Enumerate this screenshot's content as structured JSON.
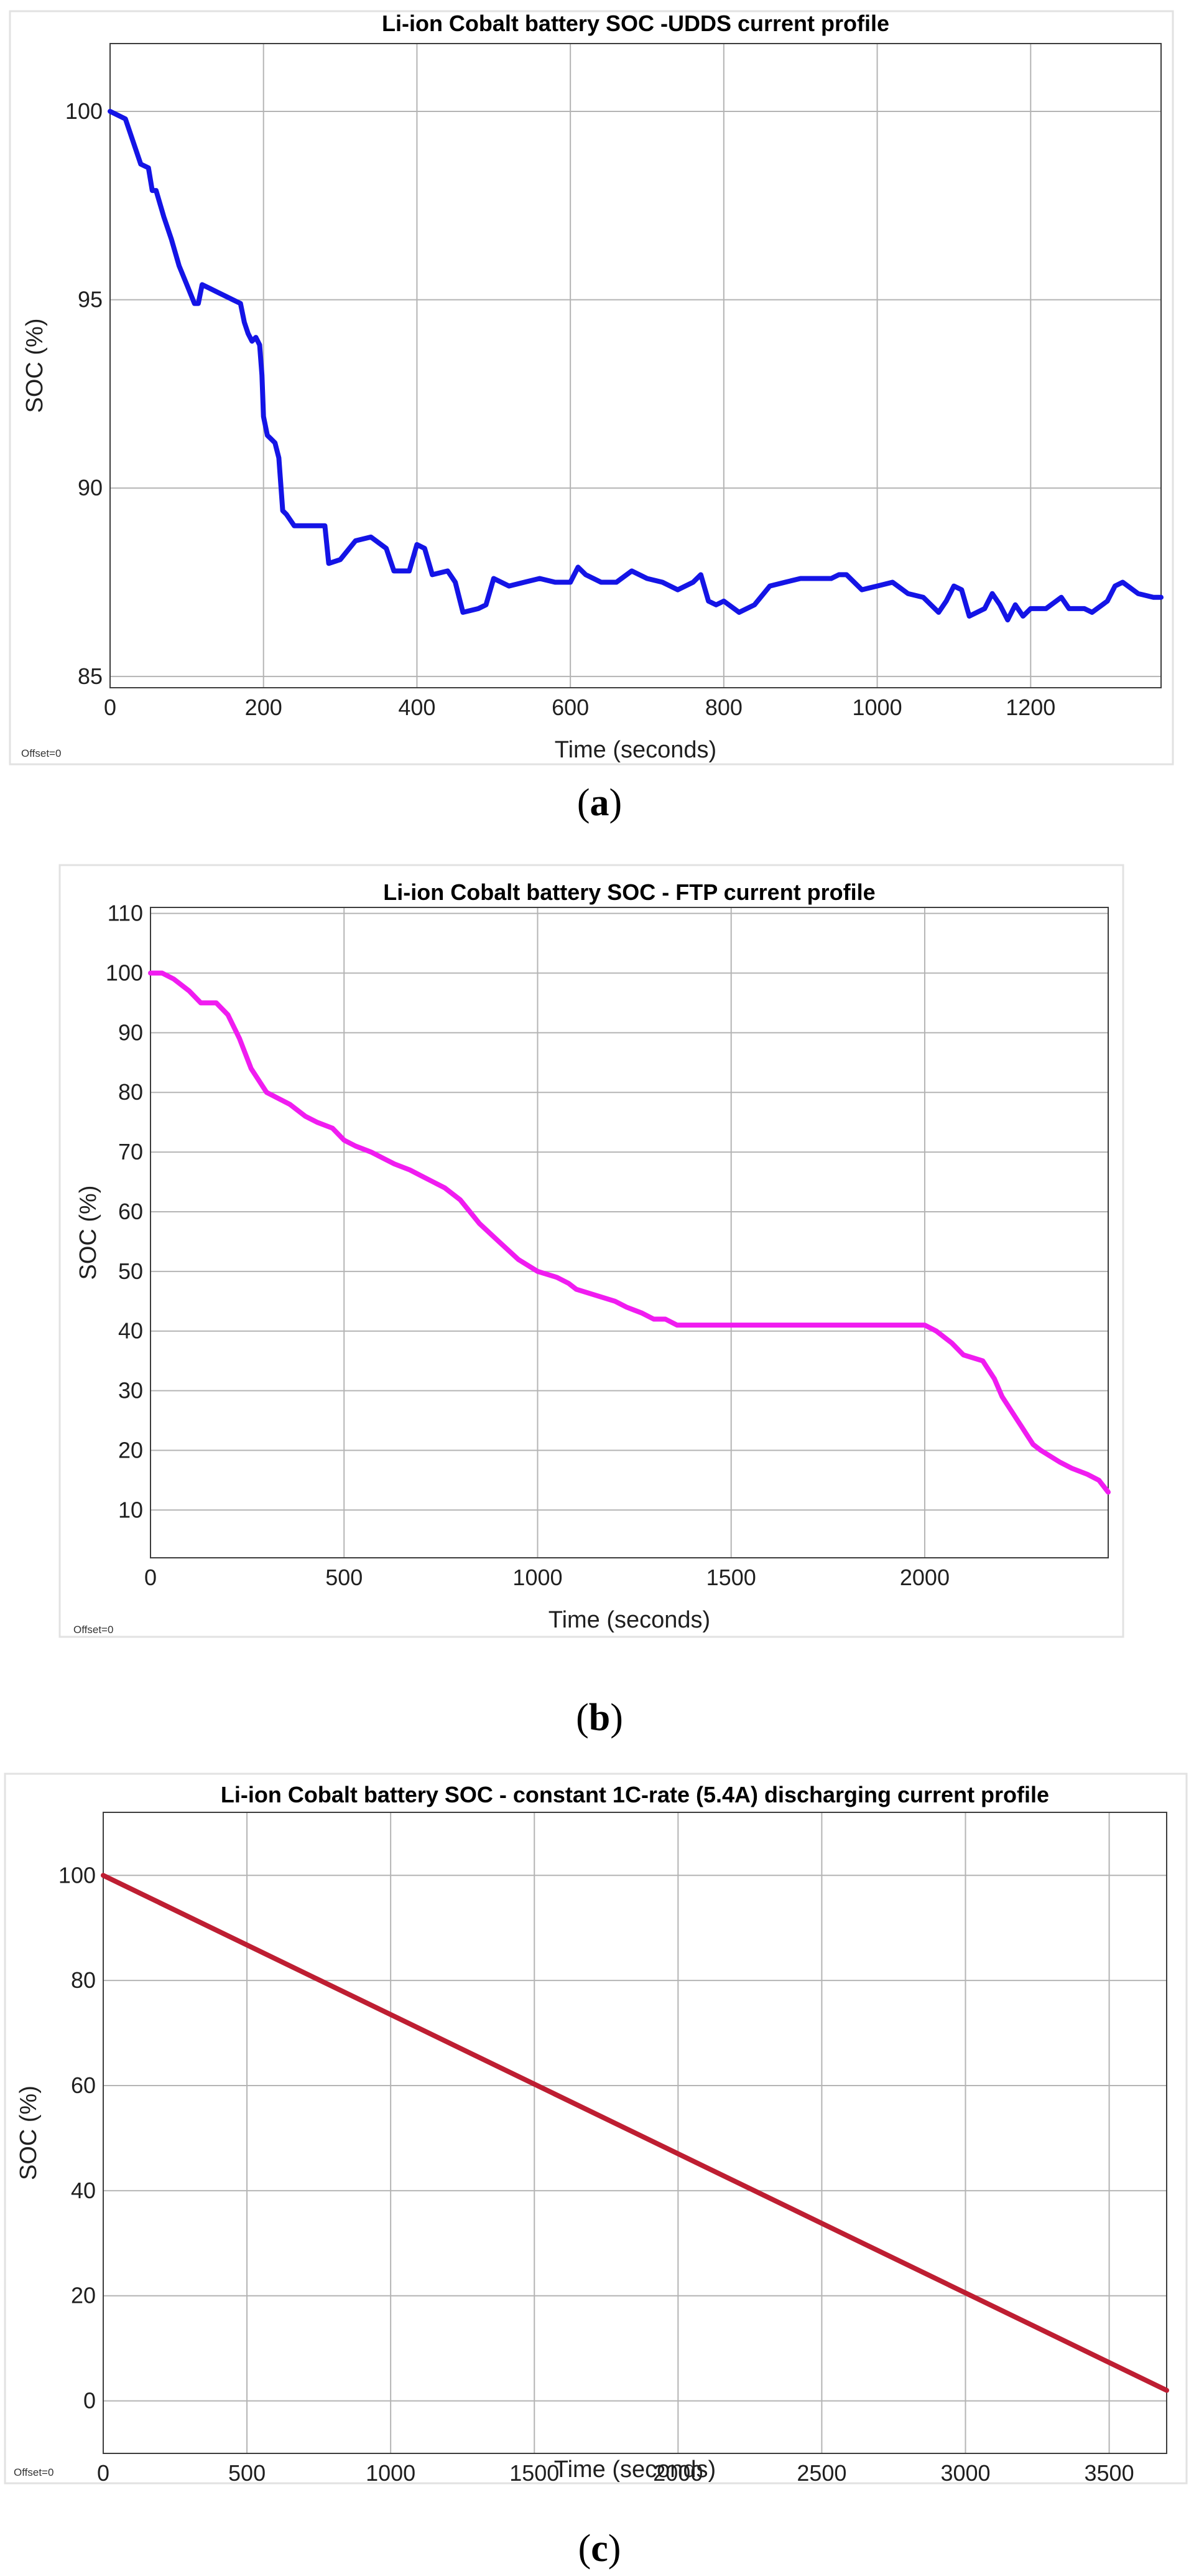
{
  "chart_data": [
    {
      "type": "line",
      "title": "Li-ion Cobalt battery SOC -UDDS current profile",
      "xlabel": "Time (seconds)",
      "ylabel": "SOC (%)",
      "offset_note": "Offset=0",
      "caption_open": "(",
      "caption_letter": "a",
      "caption_close": ")",
      "xlim": [
        0,
        1370
      ],
      "ylim": [
        84.7,
        101.8
      ],
      "xticks": [
        0,
        200,
        400,
        600,
        800,
        1000,
        1200
      ],
      "yticks": [
        85,
        90,
        95,
        100
      ],
      "grid": true,
      "line_color": "#1414e6",
      "series": [
        {
          "name": "SOC",
          "x": [
            0,
            20,
            30,
            40,
            50,
            55,
            60,
            70,
            80,
            90,
            100,
            110,
            115,
            120,
            130,
            140,
            150,
            160,
            170,
            175,
            180,
            185,
            190,
            195,
            198,
            200,
            205,
            210,
            215,
            220,
            225,
            230,
            240,
            260,
            280,
            285,
            300,
            320,
            340,
            360,
            370,
            390,
            400,
            410,
            420,
            440,
            450,
            460,
            480,
            490,
            500,
            520,
            540,
            560,
            580,
            600,
            610,
            620,
            640,
            660,
            680,
            700,
            720,
            730,
            740,
            760,
            770,
            780,
            790,
            800,
            820,
            840,
            860,
            880,
            900,
            920,
            940,
            950,
            960,
            980,
            1000,
            1020,
            1040,
            1060,
            1080,
            1090,
            1100,
            1110,
            1120,
            1140,
            1150,
            1160,
            1170,
            1180,
            1190,
            1200,
            1220,
            1240,
            1250,
            1260,
            1270,
            1280,
            1300,
            1310,
            1320,
            1340,
            1360,
            1370
          ],
          "values": [
            100,
            99.8,
            99.2,
            98.6,
            98.5,
            97.9,
            97.9,
            97.2,
            96.6,
            95.9,
            95.4,
            94.9,
            94.9,
            95.4,
            95.3,
            95.2,
            95.1,
            95.0,
            94.9,
            94.4,
            94.1,
            93.9,
            94.0,
            93.8,
            93.0,
            91.9,
            91.4,
            91.3,
            91.2,
            90.8,
            89.4,
            89.3,
            89.0,
            89.0,
            89.0,
            88.0,
            88.1,
            88.6,
            88.7,
            88.4,
            87.8,
            87.8,
            88.5,
            88.4,
            87.7,
            87.8,
            87.5,
            86.7,
            86.8,
            86.9,
            87.6,
            87.4,
            87.5,
            87.6,
            87.5,
            87.5,
            87.9,
            87.7,
            87.5,
            87.5,
            87.8,
            87.6,
            87.5,
            87.4,
            87.3,
            87.5,
            87.7,
            87.0,
            86.9,
            87.0,
            86.7,
            86.9,
            87.4,
            87.5,
            87.6,
            87.6,
            87.6,
            87.7,
            87.7,
            87.3,
            87.4,
            87.5,
            87.2,
            87.1,
            86.7,
            87.0,
            87.4,
            87.3,
            86.6,
            86.8,
            87.2,
            86.9,
            86.5,
            86.9,
            86.6,
            86.8,
            86.8,
            87.1,
            86.8,
            86.8,
            86.8,
            86.7,
            87.0,
            87.4,
            87.5,
            87.2,
            87.1,
            87.1
          ]
        }
      ]
    },
    {
      "type": "line",
      "title": "Li-ion Cobalt  battery SOC - FTP current profile",
      "xlabel": "Time (seconds)",
      "ylabel": "SOC (%)",
      "offset_note": "Offset=0",
      "caption_open": "(",
      "caption_letter": "b",
      "caption_close": ")",
      "xlim": [
        0,
        2474
      ],
      "ylim": [
        2,
        111
      ],
      "xticks": [
        0,
        500,
        1000,
        1500,
        2000
      ],
      "yticks": [
        10,
        20,
        30,
        40,
        50,
        60,
        70,
        80,
        90,
        100,
        110
      ],
      "grid": true,
      "line_color": "#f01cf0",
      "series": [
        {
          "name": "SOC",
          "x": [
            0,
            30,
            60,
            100,
            130,
            170,
            200,
            230,
            260,
            300,
            330,
            360,
            400,
            430,
            470,
            500,
            530,
            570,
            600,
            630,
            670,
            700,
            730,
            760,
            800,
            850,
            900,
            950,
            1000,
            1050,
            1080,
            1100,
            1150,
            1200,
            1230,
            1270,
            1300,
            1330,
            1360,
            1500,
            1700,
            1900,
            2000,
            2030,
            2070,
            2100,
            2150,
            2180,
            2200,
            2250,
            2280,
            2300,
            2350,
            2380,
            2420,
            2450,
            2474
          ],
          "values": [
            100,
            100,
            99,
            97,
            95,
            95,
            93,
            89,
            84,
            80,
            79,
            78,
            76,
            75,
            74,
            72,
            71,
            70,
            69,
            68,
            67,
            66,
            65,
            64,
            62,
            58,
            55,
            52,
            50,
            49,
            48,
            47,
            46,
            45,
            44,
            43,
            42,
            42,
            41,
            41,
            41,
            41,
            41,
            40,
            38,
            36,
            35,
            32,
            29,
            24,
            21,
            20,
            18,
            17,
            16,
            15,
            13
          ]
        }
      ]
    },
    {
      "type": "line",
      "title": "Li-ion Cobalt battery SOC - constant 1C-rate (5.4A) discharging current profile",
      "xlabel": "Time (seconds)",
      "ylabel": "SOC (%)",
      "offset_note": "Offset=0",
      "caption_open": "(",
      "caption_letter": "c",
      "caption_close": ")",
      "xlim": [
        0,
        3700
      ],
      "ylim": [
        -10,
        112
      ],
      "xticks": [
        0,
        500,
        1000,
        1500,
        2000,
        2500,
        3000,
        3500
      ],
      "yticks": [
        0,
        20,
        40,
        60,
        80,
        100
      ],
      "grid": true,
      "line_color": "#be1e32",
      "series": [
        {
          "name": "SOC",
          "x": [
            0,
            3700
          ],
          "values": [
            100,
            2
          ]
        }
      ]
    }
  ]
}
